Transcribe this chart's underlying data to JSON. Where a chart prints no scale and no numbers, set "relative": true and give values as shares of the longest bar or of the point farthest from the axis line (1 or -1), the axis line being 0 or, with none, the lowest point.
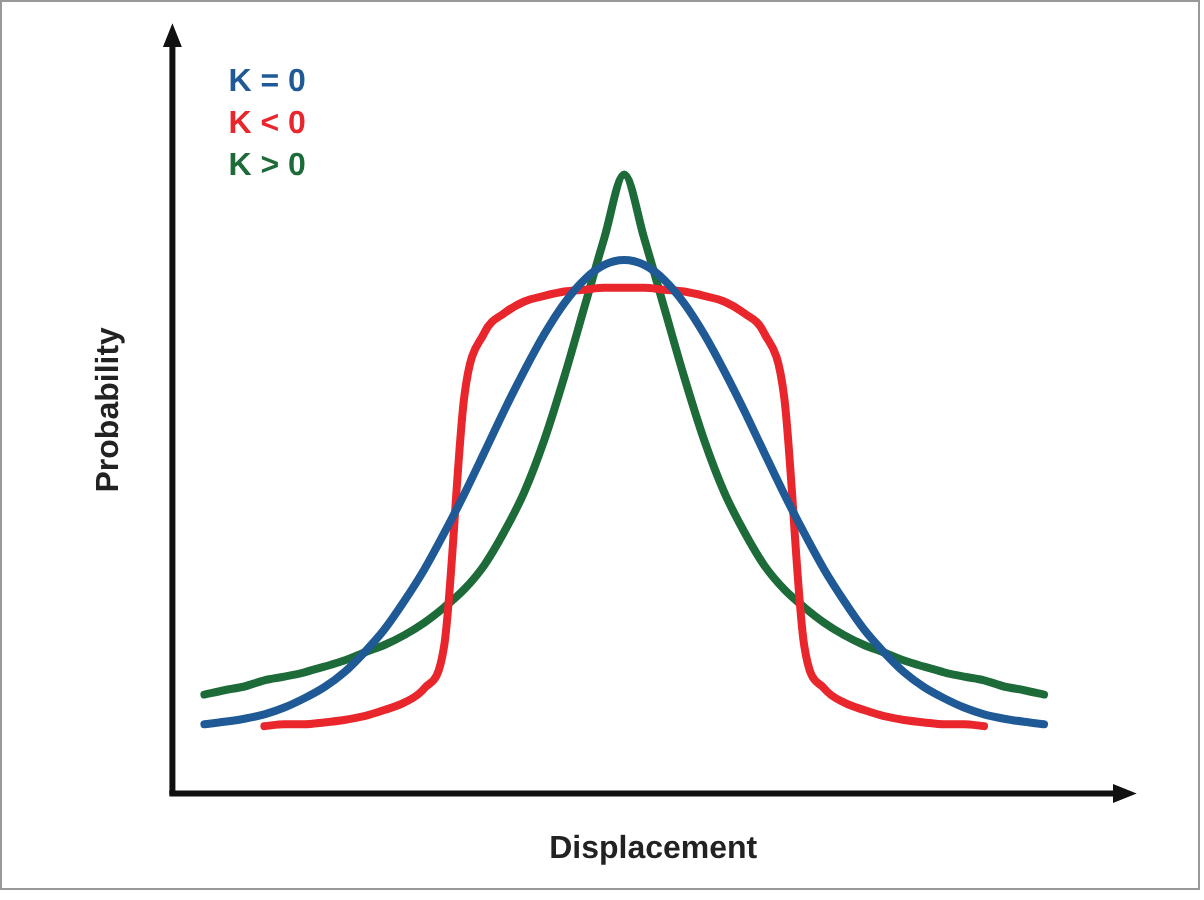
{
  "chart_data": {
    "type": "line",
    "xlabel": "Displacement",
    "ylabel": "Probability",
    "relative": true,
    "legend": "top left",
    "marker": "none",
    "categories": [
      null,
      null,
      null,
      null,
      null,
      null,
      null,
      null,
      null,
      null,
      null,
      null,
      null,
      null,
      null,
      null,
      null,
      null,
      null,
      null,
      null,
      null,
      null,
      null,
      null,
      null,
      null,
      null,
      null,
      null,
      null,
      null,
      null,
      null,
      null,
      null,
      null,
      null,
      null,
      null,
      null,
      null,
      null
    ],
    "series": [
      {
        "name": "K = 0",
        "color": "#1f5a96",
        "values": [
          0.112,
          0.116,
          0.121,
          0.128,
          0.139,
          0.154,
          0.172,
          0.196,
          0.228,
          0.265,
          0.311,
          0.362,
          0.421,
          0.484,
          0.551,
          0.619,
          0.683,
          0.742,
          0.792,
          0.83,
          0.854,
          0.862,
          0.854,
          0.83,
          0.792,
          0.742,
          0.683,
          0.619,
          0.551,
          0.484,
          0.421,
          0.362,
          0.311,
          0.265,
          0.228,
          0.196,
          0.172,
          0.154,
          0.139,
          0.128,
          0.121,
          0.116,
          0.112
        ]
      },
      {
        "name": "K < 0",
        "color": "#e8262b",
        "values": [
          null,
          null,
          null,
          0.109,
          0.112,
          0.112,
          0.115,
          0.119,
          0.125,
          0.135,
          0.147,
          0.17,
          0.24,
          0.641,
          0.744,
          0.776,
          0.795,
          0.804,
          0.811,
          0.814,
          0.817,
          0.817,
          0.817,
          0.814,
          0.811,
          0.804,
          0.795,
          0.776,
          0.744,
          0.641,
          0.24,
          0.17,
          0.147,
          0.135,
          0.125,
          0.119,
          0.115,
          0.112,
          0.112,
          0.109,
          null,
          null,
          null
        ]
      },
      {
        "name": "K > 0",
        "color": "#1e6b3a",
        "values": [
          0.16,
          0.167,
          0.173,
          0.183,
          0.189,
          0.196,
          0.205,
          0.215,
          0.228,
          0.24,
          0.256,
          0.276,
          0.301,
          0.33,
          0.369,
          0.423,
          0.487,
          0.571,
          0.673,
          0.785,
          0.897,
          1,
          0.897,
          0.785,
          0.673,
          0.571,
          0.487,
          0.423,
          0.369,
          0.33,
          0.301,
          0.276,
          0.256,
          0.24,
          0.228,
          0.215,
          0.205,
          0.196,
          0.189,
          0.183,
          0.173,
          0.167,
          0.16
        ]
      }
    ]
  }
}
